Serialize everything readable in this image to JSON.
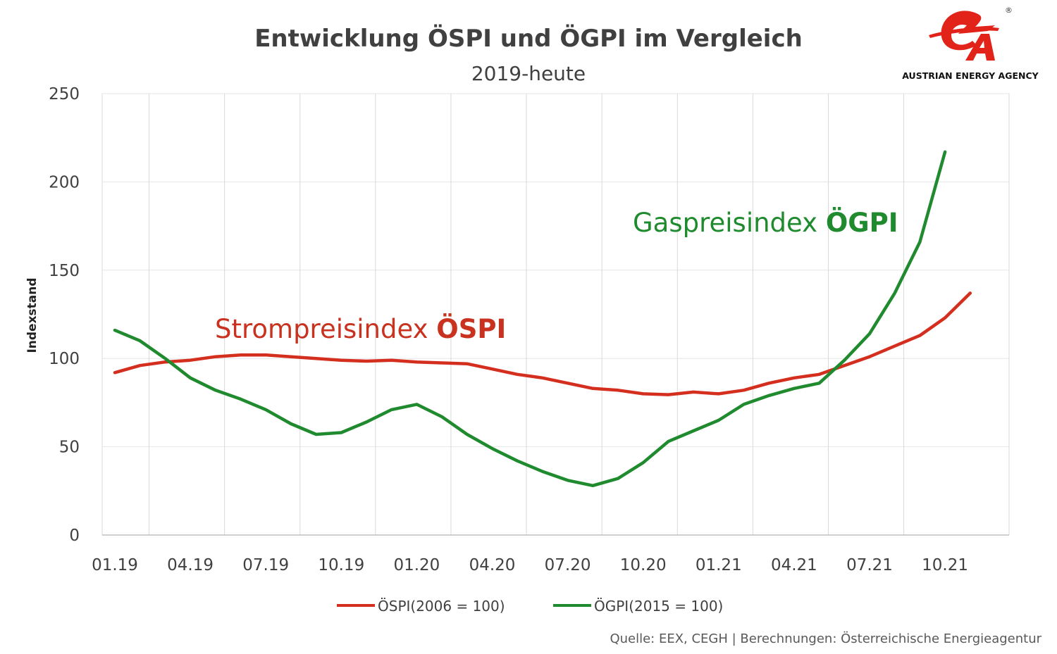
{
  "chart_data": {
    "type": "line",
    "title": "Entwicklung ÖSPI und ÖGPI im Vergleich",
    "subtitle": "2019-heute",
    "ylabel": "Indexstand",
    "xlabel": "",
    "ylim": [
      0,
      250
    ],
    "yticks": [
      0,
      50,
      100,
      150,
      200,
      250
    ],
    "xticks": [
      "01.19",
      "04.19",
      "07.19",
      "10.19",
      "01.20",
      "04.20",
      "07.20",
      "10.20",
      "01.21",
      "04.21",
      "07.21",
      "10.21"
    ],
    "x": [
      "01.19",
      "02.19",
      "03.19",
      "04.19",
      "05.19",
      "06.19",
      "07.19",
      "08.19",
      "09.19",
      "10.19",
      "11.19",
      "12.19",
      "01.20",
      "02.20",
      "03.20",
      "04.20",
      "05.20",
      "06.20",
      "07.20",
      "08.20",
      "09.20",
      "10.20",
      "11.20",
      "12.20",
      "01.21",
      "02.21",
      "03.21",
      "04.21",
      "05.21",
      "06.21",
      "07.21",
      "08.21",
      "09.21",
      "10.21",
      "11.21"
    ],
    "grid": "vertical",
    "legend_position": "bottom",
    "series": [
      {
        "name": "ÖSPI(2006 = 100)",
        "color": "#d42e1e",
        "values": [
          92,
          96,
          98,
          99,
          101,
          102,
          102,
          101,
          100,
          99,
          98.5,
          99,
          98,
          97.5,
          97,
          94,
          91,
          89,
          86,
          83,
          82,
          80,
          79.5,
          81,
          80,
          82,
          86,
          89,
          91,
          96,
          101,
          107,
          113,
          123,
          137
        ]
      },
      {
        "name": "ÖGPI(2015 = 100)",
        "color": "#1f8a2e",
        "values": [
          116,
          110,
          100,
          89,
          82,
          77,
          71,
          63,
          57,
          58,
          64,
          71,
          74,
          67,
          57,
          49,
          42,
          36,
          31,
          28,
          32,
          41,
          53,
          59,
          65,
          74,
          79,
          83,
          86,
          99,
          114,
          137,
          166,
          217,
          null
        ]
      }
    ],
    "annotations": [
      {
        "prefix": "Strompreisindex ",
        "bold": "ÖSPI",
        "color": "#c8321f"
      },
      {
        "prefix": "Gaspreisindex ",
        "bold": "ÖGPI",
        "color": "#1f8a2e"
      }
    ]
  },
  "source": "Quelle: EEX, CEGH | Berechnungen: Österreichische Energieagentur",
  "logo": {
    "tagline": "AUSTRIAN ENERGY AGENCY",
    "registered_mark": "®",
    "brand_color": "#e2231a"
  }
}
